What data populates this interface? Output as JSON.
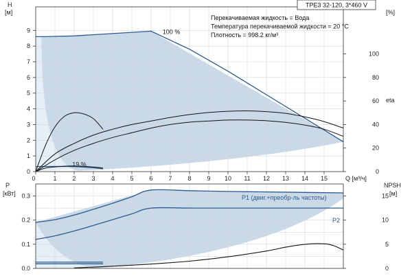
{
  "chart_data": {
    "type": "line",
    "title": "TPE3 32-120, 3*460 V",
    "info_lines": [
      "Перекачиваемая жидкость = Вода",
      "Температура перекачиваемой жидкости = 20 °C",
      "Плотность = 998.2 кг/м³"
    ],
    "colors": {
      "region": "#c9d9e8",
      "region_light": "#e6eff7",
      "blue": "#2b5a8c",
      "black": "#111111",
      "grid": "#d6d6d6"
    },
    "x_axis": {
      "label": "Q [м³/ч]",
      "min": 0,
      "max": 16,
      "ticks": [
        0,
        1,
        2,
        3,
        4,
        5,
        6,
        7,
        8,
        9,
        10,
        11,
        12,
        13,
        14,
        15
      ]
    },
    "top_panel": {
      "y_left": {
        "label_line1": "H",
        "label_line2": "[м]",
        "min": 0,
        "max": 10.5,
        "ticks": [
          0,
          1,
          2,
          3,
          4,
          5,
          6,
          7,
          8,
          9
        ]
      },
      "y_right": {
        "label_line1": "eta",
        "label_line2": "[%]",
        "min": 0,
        "max": 140,
        "ticks": [
          0,
          20,
          40,
          60,
          80,
          100
        ]
      },
      "annotations": [
        {
          "text": "100 %",
          "x": 6.6,
          "y": 8.9
        },
        {
          "text": "19 %",
          "x": 1.9,
          "y": 0.45
        }
      ],
      "series": [
        {
          "kind": "head",
          "color": "blue",
          "x": [
            0,
            0.5,
            2,
            4,
            6,
            8,
            10,
            12,
            14,
            16
          ],
          "y": [
            8.6,
            8.6,
            8.65,
            8.8,
            8.95,
            7.8,
            6.4,
            4.9,
            3.4,
            1.9
          ]
        },
        {
          "kind": "head",
          "color": "blue",
          "x": [
            0,
            1,
            2,
            3,
            3.5
          ],
          "y": [
            0.32,
            0.33,
            0.32,
            0.24,
            0.18
          ]
        },
        {
          "kind": "efficiency",
          "color": "black",
          "x": [
            0,
            1,
            2,
            3,
            4,
            5,
            6,
            7,
            8,
            9,
            10,
            11,
            12,
            13,
            14,
            15,
            16
          ],
          "y": [
            0,
            10,
            18,
            24,
            29,
            33,
            37,
            40,
            42,
            43,
            43.8,
            43.8,
            43.2,
            41.8,
            39.5,
            36,
            30
          ]
        },
        {
          "kind": "efficiency",
          "color": "black",
          "x": [
            0,
            1,
            2,
            3,
            4,
            5,
            6,
            7,
            8,
            9,
            10,
            11,
            12,
            13,
            14,
            15,
            16
          ],
          "y": [
            0,
            15,
            24,
            31,
            36,
            40,
            43,
            46,
            48.5,
            50.2,
            51.3,
            51.6,
            51,
            49.5,
            46.5,
            42.5,
            37
          ]
        },
        {
          "kind": "efficiency",
          "color": "black",
          "x": [
            0,
            0.5,
            1,
            1.5,
            2,
            2.5,
            3,
            3.5
          ],
          "y": [
            0,
            22,
            38,
            47,
            50,
            49,
            45,
            36
          ]
        },
        {
          "kind": "efficiency",
          "color": "black",
          "x": [
            0,
            0.5,
            1,
            1.5,
            2,
            2.5,
            3,
            3.5
          ],
          "y": [
            0,
            3,
            4,
            4.6,
            4.8,
            4.5,
            3.9,
            3
          ]
        }
      ]
    },
    "bottom_panel": {
      "y_left": {
        "label_line1": "P",
        "label_line2": "[кВт]",
        "min": 0,
        "max": 0.35,
        "ticks": [
          0.0,
          0.1,
          0.2,
          0.3
        ]
      },
      "y_right": {
        "label_line1": "NPSH",
        "label_line2": "[м]",
        "min": 0,
        "max": 17.5,
        "ticks": [
          0,
          5,
          10,
          15
        ]
      },
      "series": [
        {
          "name": "P1 (двиг.+преобр-ль частоты)",
          "kind": "power",
          "color": "blue",
          "x": [
            0,
            1,
            2,
            3,
            4,
            5,
            6,
            8,
            10,
            12,
            14,
            16
          ],
          "y": [
            0.191,
            0.202,
            0.221,
            0.245,
            0.27,
            0.297,
            0.325,
            0.322,
            0.319,
            0.317,
            0.315,
            0.313
          ]
        },
        {
          "name": "P2",
          "kind": "power",
          "color": "blue",
          "x": [
            0,
            1,
            2,
            3,
            4,
            5,
            6,
            8,
            10,
            12,
            14,
            16
          ],
          "y": [
            0.12,
            0.135,
            0.155,
            0.178,
            0.202,
            0.226,
            0.25,
            0.25,
            0.25,
            0.25,
            0.25,
            0.25
          ]
        },
        {
          "kind": "power",
          "color": "blue",
          "x": [
            0,
            3.5
          ],
          "y": [
            0.026,
            0.026
          ]
        },
        {
          "kind": "power",
          "color": "blue",
          "x": [
            0,
            3.5
          ],
          "y": [
            0.019,
            0.019
          ]
        },
        {
          "kind": "npsh",
          "color": "black",
          "x": [
            2,
            4,
            6,
            8,
            10,
            12,
            13,
            14,
            15,
            15.5,
            16
          ],
          "y": [
            0.1,
            0.45,
            0.9,
            1.5,
            2.4,
            3.6,
            4.4,
            5.0,
            5.1,
            4.7,
            3.8
          ]
        }
      ]
    }
  }
}
